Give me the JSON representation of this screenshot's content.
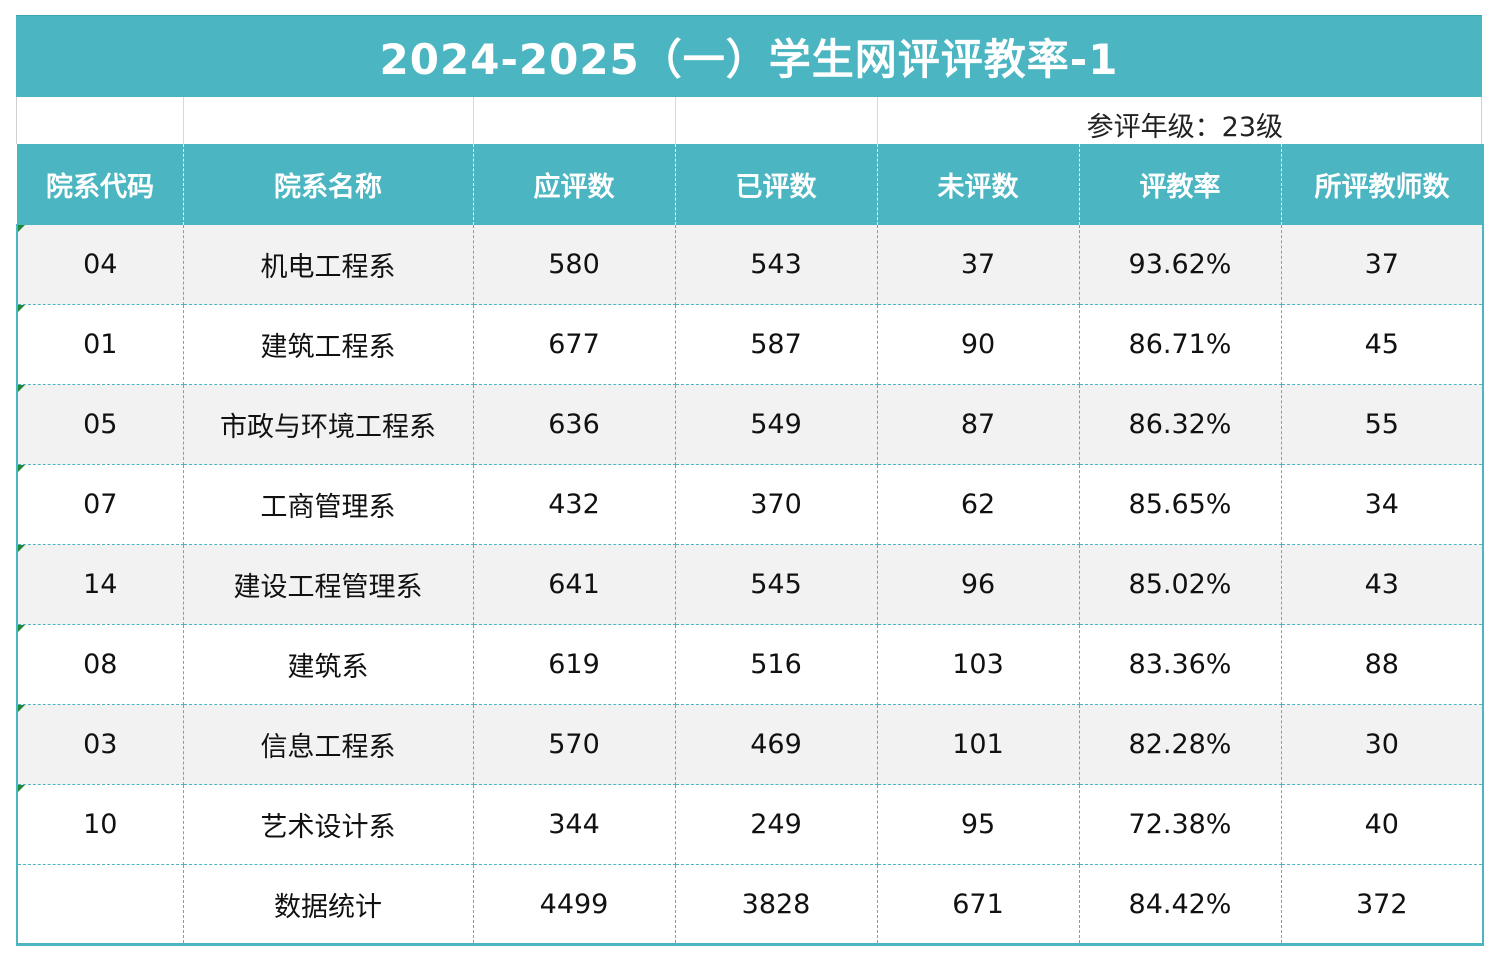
{
  "title": "2024-2025（一）学生网评评教率-1",
  "grade_label": "参评年级：23级",
  "headers": [
    "院系代码",
    "院系名称",
    "应评数",
    "已评数",
    "未评数",
    "评教率",
    "所评教师数"
  ],
  "rows": [
    {
      "code": "04",
      "name": "机电工程系",
      "due": "580",
      "done": "543",
      "pending": "37",
      "rate": "93.62%",
      "teachers": "37"
    },
    {
      "code": "01",
      "name": "建筑工程系",
      "due": "677",
      "done": "587",
      "pending": "90",
      "rate": "86.71%",
      "teachers": "45"
    },
    {
      "code": "05",
      "name": "市政与环境工程系",
      "due": "636",
      "done": "549",
      "pending": "87",
      "rate": "86.32%",
      "teachers": "55"
    },
    {
      "code": "07",
      "name": "工商管理系",
      "due": "432",
      "done": "370",
      "pending": "62",
      "rate": "85.65%",
      "teachers": "34"
    },
    {
      "code": "14",
      "name": "建设工程管理系",
      "due": "641",
      "done": "545",
      "pending": "96",
      "rate": "85.02%",
      "teachers": "43"
    },
    {
      "code": "08",
      "name": "建筑系",
      "due": "619",
      "done": "516",
      "pending": "103",
      "rate": "83.36%",
      "teachers": "88"
    },
    {
      "code": "03",
      "name": "信息工程系",
      "due": "570",
      "done": "469",
      "pending": "101",
      "rate": "82.28%",
      "teachers": "30"
    },
    {
      "code": "10",
      "name": "艺术设计系",
      "due": "344",
      "done": "249",
      "pending": "95",
      "rate": "72.38%",
      "teachers": "40"
    }
  ],
  "total": {
    "code": "",
    "name": "数据统计",
    "due": "4499",
    "done": "3828",
    "pending": "671",
    "rate": "84.42%",
    "teachers": "372"
  },
  "colors": {
    "header_bg": "#4bb6c2",
    "stripe_bg": "#f2f2f2",
    "border": "#4bb6c2",
    "error_marker": "#1f8a3a"
  }
}
